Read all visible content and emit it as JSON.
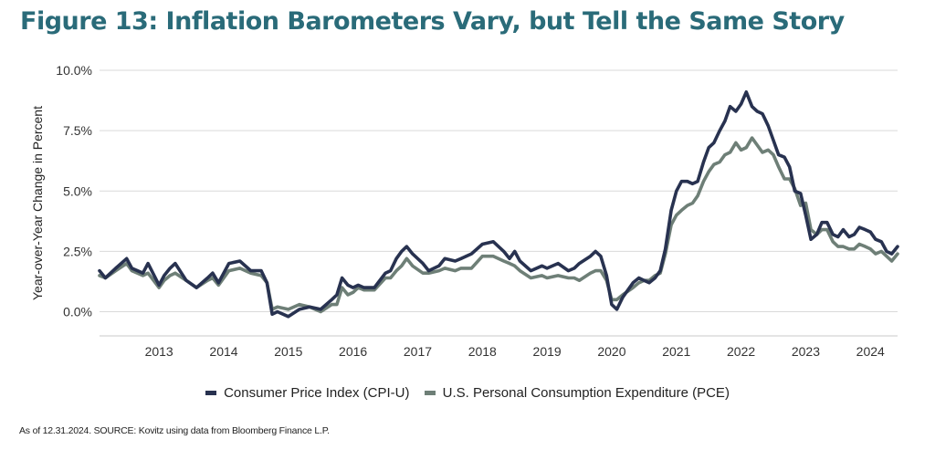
{
  "title": "Figure 13: Inflation Barometers Vary, but Tell the Same Story",
  "footnote": "As of 12.31.2024. SOURCE: Kovitz using data from Bloomberg Finance L.P.",
  "colors": {
    "cpi": "#283250",
    "pce": "#6e7f77",
    "title": "#2a6b79",
    "grid": "#d9d9d9"
  },
  "chart_data": {
    "type": "line",
    "title": "Figure 13: Inflation Barometers Vary, but Tell the Same Story",
    "ylabel": "Year-over-Year Change in Percent",
    "xlabel": "",
    "xlim": [
      2012.58,
      2024.92
    ],
    "ylim": [
      -1.0,
      10.0
    ],
    "y_ticks": [
      0,
      2.5,
      5,
      7.5,
      10
    ],
    "y_tick_labels": [
      "0.0%",
      "2.5%",
      "5.0%",
      "7.5%",
      "10.0%"
    ],
    "x_tick_labels": [
      "2013",
      "2014",
      "2015",
      "2016",
      "2017",
      "2018",
      "2019",
      "2020",
      "2021",
      "2022",
      "2023",
      "2024"
    ],
    "legend": "bottom-center",
    "series": [
      {
        "name": "Consumer Price Index (CPI-U)",
        "points": [
          [
            2012.58,
            1.7
          ],
          [
            2012.67,
            1.4
          ],
          [
            2012.83,
            1.8
          ],
          [
            2013.0,
            2.2
          ],
          [
            2013.08,
            1.8
          ],
          [
            2013.25,
            1.6
          ],
          [
            2013.33,
            2.0
          ],
          [
            2013.5,
            1.1
          ],
          [
            2013.58,
            1.5
          ],
          [
            2013.67,
            1.8
          ],
          [
            2013.75,
            2.0
          ],
          [
            2013.92,
            1.3
          ],
          [
            2014.08,
            1.0
          ],
          [
            2014.25,
            1.4
          ],
          [
            2014.33,
            1.6
          ],
          [
            2014.42,
            1.2
          ],
          [
            2014.58,
            2.0
          ],
          [
            2014.75,
            2.1
          ],
          [
            2014.92,
            1.7
          ],
          [
            2015.08,
            1.7
          ],
          [
            2015.17,
            1.2
          ],
          [
            2015.25,
            -0.1
          ],
          [
            2015.33,
            0.0
          ],
          [
            2015.5,
            -0.2
          ],
          [
            2015.67,
            0.1
          ],
          [
            2015.83,
            0.2
          ],
          [
            2016.0,
            0.1
          ],
          [
            2016.17,
            0.5
          ],
          [
            2016.25,
            0.7
          ],
          [
            2016.33,
            1.4
          ],
          [
            2016.42,
            1.1
          ],
          [
            2016.5,
            1.0
          ],
          [
            2016.58,
            1.1
          ],
          [
            2016.67,
            1.0
          ],
          [
            2016.83,
            1.0
          ],
          [
            2017.0,
            1.6
          ],
          [
            2017.08,
            1.7
          ],
          [
            2017.17,
            2.2
          ],
          [
            2017.25,
            2.5
          ],
          [
            2017.33,
            2.7
          ],
          [
            2017.42,
            2.4
          ],
          [
            2017.58,
            2.0
          ],
          [
            2017.67,
            1.7
          ],
          [
            2017.83,
            1.9
          ],
          [
            2017.92,
            2.2
          ],
          [
            2018.08,
            2.1
          ],
          [
            2018.17,
            2.2
          ],
          [
            2018.33,
            2.4
          ],
          [
            2018.5,
            2.8
          ],
          [
            2018.67,
            2.9
          ],
          [
            2018.83,
            2.5
          ],
          [
            2018.92,
            2.2
          ],
          [
            2019.0,
            2.5
          ],
          [
            2019.08,
            2.1
          ],
          [
            2019.25,
            1.7
          ],
          [
            2019.42,
            1.9
          ],
          [
            2019.5,
            1.8
          ],
          [
            2019.67,
            2.0
          ],
          [
            2019.83,
            1.7
          ],
          [
            2019.92,
            1.8
          ],
          [
            2020.0,
            2.0
          ],
          [
            2020.17,
            2.3
          ],
          [
            2020.25,
            2.5
          ],
          [
            2020.33,
            2.3
          ],
          [
            2020.42,
            1.5
          ],
          [
            2020.5,
            0.3
          ],
          [
            2020.58,
            0.1
          ],
          [
            2020.67,
            0.6
          ],
          [
            2020.83,
            1.2
          ],
          [
            2020.92,
            1.4
          ],
          [
            2021.0,
            1.3
          ],
          [
            2021.08,
            1.2
          ],
          [
            2021.17,
            1.4
          ],
          [
            2021.25,
            1.7
          ],
          [
            2021.33,
            2.6
          ],
          [
            2021.42,
            4.2
          ],
          [
            2021.5,
            5.0
          ],
          [
            2021.58,
            5.4
          ],
          [
            2021.67,
            5.4
          ],
          [
            2021.75,
            5.3
          ],
          [
            2021.83,
            5.4
          ],
          [
            2021.92,
            6.2
          ],
          [
            2022.0,
            6.8
          ],
          [
            2022.08,
            7.0
          ],
          [
            2022.17,
            7.5
          ],
          [
            2022.25,
            7.9
          ],
          [
            2022.33,
            8.5
          ],
          [
            2022.42,
            8.3
          ],
          [
            2022.5,
            8.6
          ],
          [
            2022.58,
            9.1
          ],
          [
            2022.67,
            8.5
          ],
          [
            2022.75,
            8.3
          ],
          [
            2022.83,
            8.2
          ],
          [
            2022.92,
            7.7
          ],
          [
            2023.0,
            7.1
          ],
          [
            2023.08,
            6.5
          ],
          [
            2023.17,
            6.4
          ],
          [
            2023.25,
            6.0
          ],
          [
            2023.33,
            5.0
          ],
          [
            2023.42,
            4.9
          ],
          [
            2023.5,
            4.0
          ],
          [
            2023.58,
            3.0
          ],
          [
            2023.67,
            3.2
          ],
          [
            2023.75,
            3.7
          ],
          [
            2023.83,
            3.7
          ],
          [
            2023.92,
            3.2
          ],
          [
            2024.0,
            3.1
          ],
          [
            2024.08,
            3.4
          ],
          [
            2024.17,
            3.1
          ],
          [
            2024.25,
            3.2
          ],
          [
            2024.33,
            3.5
          ],
          [
            2024.42,
            3.4
          ],
          [
            2024.5,
            3.3
          ],
          [
            2024.58,
            3.0
          ],
          [
            2024.67,
            2.9
          ],
          [
            2024.75,
            2.5
          ],
          [
            2024.83,
            2.4
          ],
          [
            2024.92,
            2.7
          ]
        ]
      },
      {
        "name": "U.S. Personal Consumption Expenditure (PCE)",
        "points": [
          [
            2012.58,
            1.5
          ],
          [
            2012.67,
            1.4
          ],
          [
            2012.83,
            1.7
          ],
          [
            2013.0,
            2.0
          ],
          [
            2013.08,
            1.7
          ],
          [
            2013.25,
            1.5
          ],
          [
            2013.33,
            1.6
          ],
          [
            2013.5,
            1.0
          ],
          [
            2013.58,
            1.3
          ],
          [
            2013.67,
            1.5
          ],
          [
            2013.75,
            1.6
          ],
          [
            2013.92,
            1.3
          ],
          [
            2014.08,
            1.0
          ],
          [
            2014.25,
            1.3
          ],
          [
            2014.33,
            1.4
          ],
          [
            2014.42,
            1.1
          ],
          [
            2014.58,
            1.7
          ],
          [
            2014.75,
            1.8
          ],
          [
            2014.92,
            1.6
          ],
          [
            2015.08,
            1.5
          ],
          [
            2015.17,
            1.2
          ],
          [
            2015.25,
            0.1
          ],
          [
            2015.33,
            0.2
          ],
          [
            2015.5,
            0.1
          ],
          [
            2015.67,
            0.3
          ],
          [
            2015.83,
            0.2
          ],
          [
            2016.0,
            0.0
          ],
          [
            2016.17,
            0.3
          ],
          [
            2016.25,
            0.3
          ],
          [
            2016.33,
            1.0
          ],
          [
            2016.42,
            0.7
          ],
          [
            2016.5,
            0.8
          ],
          [
            2016.58,
            1.0
          ],
          [
            2016.67,
            0.9
          ],
          [
            2016.83,
            0.9
          ],
          [
            2017.0,
            1.4
          ],
          [
            2017.08,
            1.4
          ],
          [
            2017.17,
            1.7
          ],
          [
            2017.25,
            1.9
          ],
          [
            2017.33,
            2.2
          ],
          [
            2017.42,
            1.9
          ],
          [
            2017.58,
            1.6
          ],
          [
            2017.67,
            1.6
          ],
          [
            2017.83,
            1.7
          ],
          [
            2017.92,
            1.8
          ],
          [
            2018.08,
            1.7
          ],
          [
            2018.17,
            1.8
          ],
          [
            2018.33,
            1.8
          ],
          [
            2018.5,
            2.3
          ],
          [
            2018.67,
            2.3
          ],
          [
            2018.83,
            2.1
          ],
          [
            2018.92,
            2.0
          ],
          [
            2019.0,
            1.9
          ],
          [
            2019.08,
            1.7
          ],
          [
            2019.25,
            1.4
          ],
          [
            2019.42,
            1.5
          ],
          [
            2019.5,
            1.4
          ],
          [
            2019.67,
            1.5
          ],
          [
            2019.83,
            1.4
          ],
          [
            2019.92,
            1.4
          ],
          [
            2020.0,
            1.3
          ],
          [
            2020.17,
            1.6
          ],
          [
            2020.25,
            1.7
          ],
          [
            2020.33,
            1.7
          ],
          [
            2020.42,
            1.3
          ],
          [
            2020.5,
            0.5
          ],
          [
            2020.58,
            0.5
          ],
          [
            2020.67,
            0.7
          ],
          [
            2020.83,
            1.0
          ],
          [
            2020.92,
            1.2
          ],
          [
            2021.0,
            1.3
          ],
          [
            2021.08,
            1.3
          ],
          [
            2021.17,
            1.5
          ],
          [
            2021.25,
            1.6
          ],
          [
            2021.33,
            2.4
          ],
          [
            2021.42,
            3.6
          ],
          [
            2021.5,
            4.0
          ],
          [
            2021.58,
            4.2
          ],
          [
            2021.67,
            4.4
          ],
          [
            2021.75,
            4.5
          ],
          [
            2021.83,
            4.8
          ],
          [
            2021.92,
            5.4
          ],
          [
            2022.0,
            5.8
          ],
          [
            2022.08,
            6.1
          ],
          [
            2022.17,
            6.2
          ],
          [
            2022.25,
            6.5
          ],
          [
            2022.33,
            6.6
          ],
          [
            2022.42,
            7.0
          ],
          [
            2022.5,
            6.7
          ],
          [
            2022.58,
            6.8
          ],
          [
            2022.67,
            7.2
          ],
          [
            2022.75,
            6.9
          ],
          [
            2022.83,
            6.6
          ],
          [
            2022.92,
            6.7
          ],
          [
            2023.0,
            6.5
          ],
          [
            2023.08,
            6.0
          ],
          [
            2023.17,
            5.5
          ],
          [
            2023.25,
            5.5
          ],
          [
            2023.33,
            5.1
          ],
          [
            2023.42,
            4.4
          ],
          [
            2023.5,
            4.5
          ],
          [
            2023.58,
            3.4
          ],
          [
            2023.67,
            3.2
          ],
          [
            2023.75,
            3.4
          ],
          [
            2023.83,
            3.4
          ],
          [
            2023.92,
            2.9
          ],
          [
            2024.0,
            2.7
          ],
          [
            2024.08,
            2.7
          ],
          [
            2024.17,
            2.6
          ],
          [
            2024.25,
            2.6
          ],
          [
            2024.33,
            2.8
          ],
          [
            2024.42,
            2.7
          ],
          [
            2024.5,
            2.6
          ],
          [
            2024.58,
            2.4
          ],
          [
            2024.67,
            2.5
          ],
          [
            2024.75,
            2.3
          ],
          [
            2024.83,
            2.1
          ],
          [
            2024.92,
            2.4
          ]
        ]
      }
    ]
  }
}
